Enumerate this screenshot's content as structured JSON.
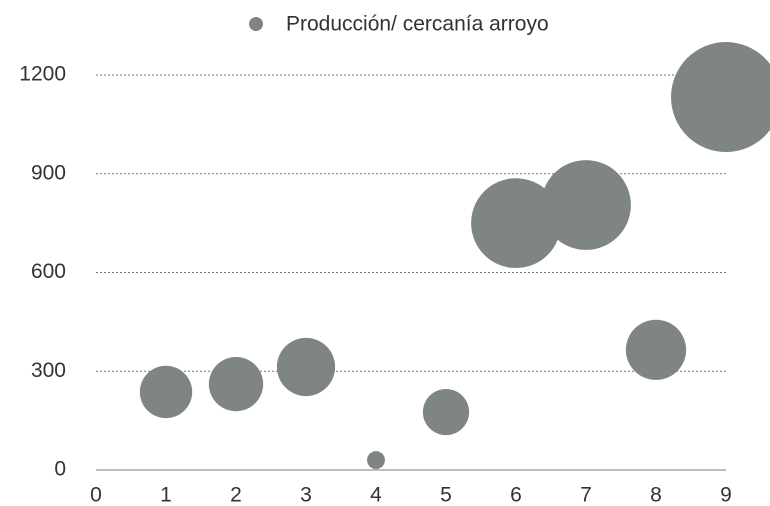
{
  "chart_data": {
    "type": "bubble",
    "series": [
      {
        "name": "Producción/ cercanía arroyo",
        "color": "#7f8581",
        "x": [
          1,
          2,
          3,
          4,
          5,
          6,
          7,
          8,
          9
        ],
        "values": [
          237,
          261,
          313,
          30,
          176,
          750,
          805,
          365,
          1133
        ],
        "sizes": [
          680,
          730,
          840,
          80,
          530,
          2000,
          2000,
          900,
          3000
        ]
      }
    ],
    "xlim": [
      0,
      9
    ],
    "xticks": [
      0,
      1,
      2,
      3,
      4,
      5,
      6,
      7,
      8,
      9
    ],
    "ylim": [
      0,
      1200
    ],
    "yticks": [
      0,
      300,
      600,
      900,
      1200
    ],
    "grid": true,
    "legend": "top"
  }
}
